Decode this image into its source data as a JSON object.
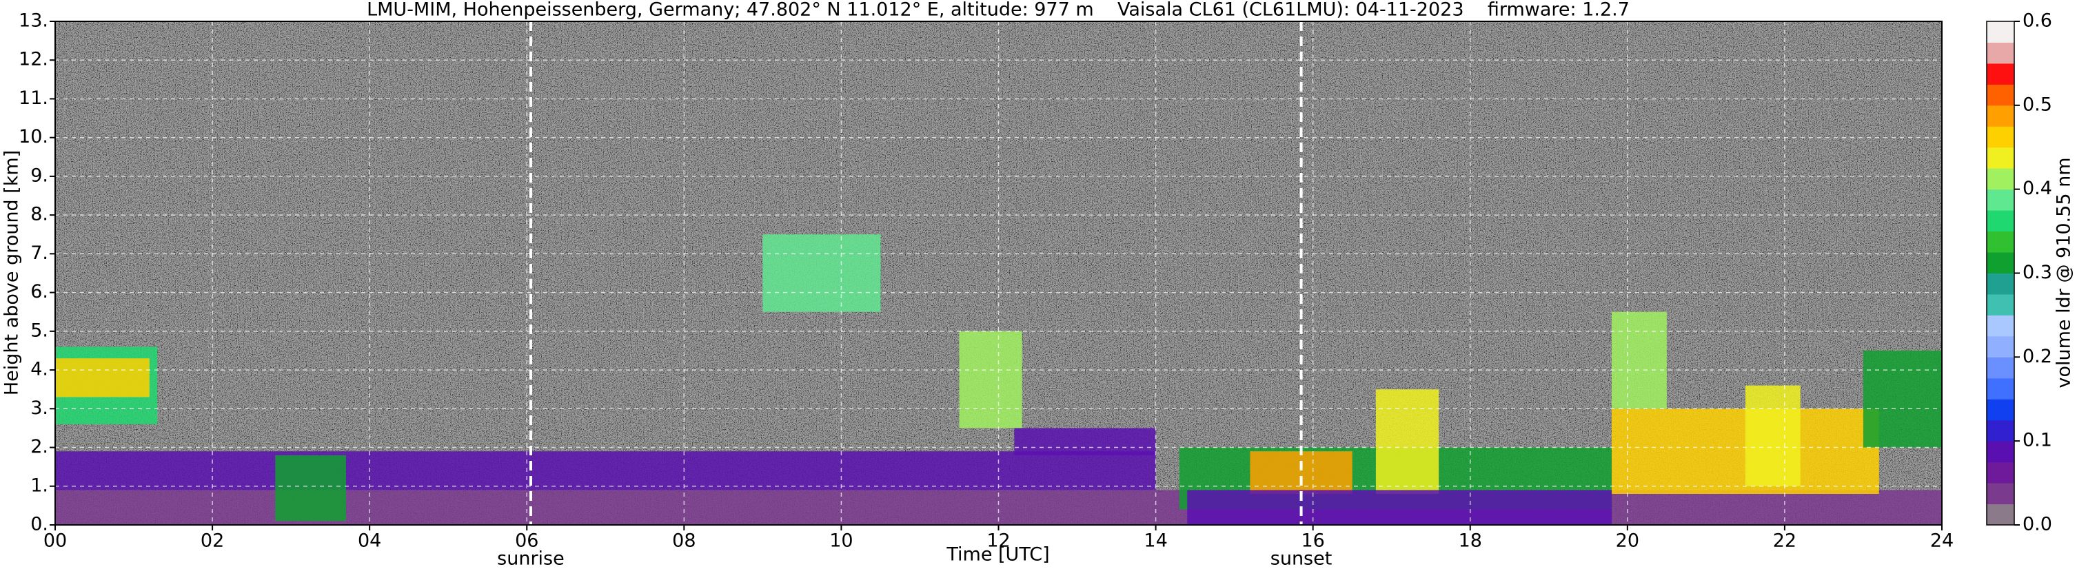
{
  "chart_data": {
    "type": "heatmap",
    "title": "LMU-MIM, Hohenpeissenberg, Germany; 47.802° N 11.012° E, altitude: 977 m    Vaisala CL61 (CL61LMU): 04-11-2023    firmware: 1.2.7",
    "x_label": "Time [UTC]",
    "y_label": "Height above ground [km]",
    "colorbar_label": "volume ldr @ 910.55 nm",
    "xlim": [
      0,
      24
    ],
    "xticks": [
      {
        "value": 0,
        "label": "00"
      },
      {
        "value": 2,
        "label": "02"
      },
      {
        "value": 4,
        "label": "04"
      },
      {
        "value": 6,
        "label": "06"
      },
      {
        "value": 8,
        "label": "08"
      },
      10,
      12,
      14,
      16,
      18,
      20,
      22,
      24
    ],
    "ylim": [
      0,
      13
    ],
    "yticks": [
      {
        "value": 0,
        "label": "0."
      },
      {
        "value": 1,
        "label": "1."
      },
      {
        "value": 2,
        "label": "2."
      },
      {
        "value": 3,
        "label": "3."
      },
      {
        "value": 4,
        "label": "4."
      },
      {
        "value": 5,
        "label": "5."
      },
      {
        "value": 6,
        "label": "6."
      },
      {
        "value": 7,
        "label": "7."
      },
      {
        "value": 8,
        "label": "8."
      },
      {
        "value": 9,
        "label": "9."
      },
      {
        "value": 10,
        "label": "10."
      },
      {
        "value": 11,
        "label": "11."
      },
      {
        "value": 12,
        "label": "12."
      },
      {
        "value": 13,
        "label": "13."
      }
    ],
    "zlim": [
      0,
      0.6
    ],
    "zticks": [
      {
        "value": 0,
        "label": "0.0"
      },
      0.1,
      0.2,
      0.3,
      0.4,
      0.5,
      0.6
    ],
    "colors": [
      "#8a7a8a",
      "#7a3a8e",
      "#6e1a9a",
      "#5a10b0",
      "#3020d0",
      "#1040f0",
      "#4070ff",
      "#6a90ff",
      "#90b0ff",
      "#a8c8ff",
      "#40c0b0",
      "#20a090",
      "#10a030",
      "#30c030",
      "#20d870",
      "#60e890",
      "#a0f060",
      "#f0f020",
      "#ffd000",
      "#ffa000",
      "#ff6000",
      "#ff1010",
      "#e8a8a8",
      "#f4f0f0"
    ],
    "grid": true,
    "annotations": [
      {
        "label": "sunrise",
        "x": 6.05
      },
      {
        "label": "sunset",
        "x": 15.85
      }
    ],
    "regions": [
      {
        "x": [
          0,
          24
        ],
        "y": [
          0,
          0.9
        ],
        "value": 0.03
      },
      {
        "x": [
          0,
          14
        ],
        "y": [
          0.9,
          1.9
        ],
        "value": 0.08
      },
      {
        "x": [
          0,
          1.3
        ],
        "y": [
          2.6,
          4.6
        ],
        "value": 0.36
      },
      {
        "x": [
          0,
          1.2
        ],
        "y": [
          3.3,
          4.3
        ],
        "value": 0.46
      },
      {
        "x": [
          2.8,
          3.7
        ],
        "y": [
          0.1,
          1.8
        ],
        "value": 0.3
      },
      {
        "x": [
          9,
          10.5
        ],
        "y": [
          5.5,
          7.5
        ],
        "value": 0.38
      },
      {
        "x": [
          11.5,
          12.3
        ],
        "y": [
          2.5,
          5
        ],
        "value": 0.42
      },
      {
        "x": [
          12.2,
          14
        ],
        "y": [
          1.8,
          2.5
        ],
        "value": 0.08
      },
      {
        "x": [
          14.3,
          19.8
        ],
        "y": [
          0.4,
          2
        ],
        "value": 0.3
      },
      {
        "x": [
          15.2,
          16.5
        ],
        "y": [
          0.8,
          1.9
        ],
        "value": 0.48
      },
      {
        "x": [
          16.8,
          17.6
        ],
        "y": [
          0.8,
          3.5
        ],
        "value": 0.44
      },
      {
        "x": [
          14.4,
          19.8
        ],
        "y": [
          0,
          0.9
        ],
        "value": 0.08
      },
      {
        "x": [
          19.8,
          23.2
        ],
        "y": [
          0.8,
          3
        ],
        "value": 0.45
      },
      {
        "x": [
          21.5,
          22.2
        ],
        "y": [
          1,
          3.6
        ],
        "value": 0.44
      },
      {
        "x": [
          19.8,
          20.5
        ],
        "y": [
          3,
          5.5
        ],
        "value": 0.4
      },
      {
        "x": [
          23,
          24
        ],
        "y": [
          2,
          4.5
        ],
        "value": 0.3
      }
    ]
  }
}
